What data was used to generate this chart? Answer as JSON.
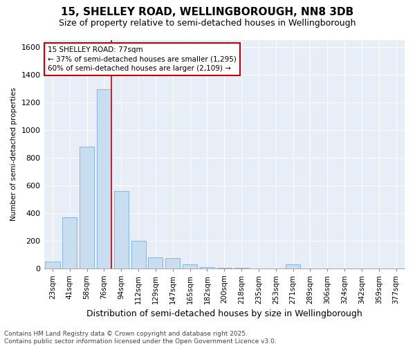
{
  "title": "15, SHELLEY ROAD, WELLINGBOROUGH, NN8 3DB",
  "subtitle": "Size of property relative to semi-detached houses in Wellingborough",
  "xlabel": "Distribution of semi-detached houses by size in Wellingborough",
  "ylabel": "Number of semi-detached properties",
  "categories": [
    "23sqm",
    "41sqm",
    "58sqm",
    "76sqm",
    "94sqm",
    "112sqm",
    "129sqm",
    "147sqm",
    "165sqm",
    "182sqm",
    "200sqm",
    "218sqm",
    "235sqm",
    "253sqm",
    "271sqm",
    "289sqm",
    "306sqm",
    "324sqm",
    "342sqm",
    "359sqm",
    "377sqm"
  ],
  "values": [
    50,
    370,
    880,
    1295,
    560,
    200,
    80,
    75,
    30,
    8,
    2,
    1,
    0,
    0,
    28,
    0,
    0,
    0,
    0,
    0,
    0
  ],
  "bar_color": "#c8ddf0",
  "bar_edge_color": "#7aaed4",
  "vline_index": 3,
  "vline_color": "#cc0000",
  "annotation_line1": "15 SHELLEY ROAD: 77sqm",
  "annotation_line2": "← 37% of semi-detached houses are smaller (1,295)",
  "annotation_line3": "60% of semi-detached houses are larger (2,109) →",
  "annotation_box_color": "#cc0000",
  "ylim": [
    0,
    1650
  ],
  "yticks": [
    0,
    200,
    400,
    600,
    800,
    1000,
    1200,
    1400,
    1600
  ],
  "background_color": "#e8eef8",
  "footer_text": "Contains HM Land Registry data © Crown copyright and database right 2025.\nContains public sector information licensed under the Open Government Licence v3.0.",
  "title_fontsize": 11,
  "subtitle_fontsize": 9,
  "annotation_fontsize": 7.5,
  "ylabel_fontsize": 7.5,
  "xlabel_fontsize": 9,
  "footer_fontsize": 6.5,
  "tick_fontsize": 7.5,
  "ytick_fontsize": 8
}
